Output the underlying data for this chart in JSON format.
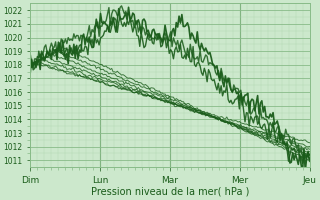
{
  "bg_color": "#cce8cc",
  "grid_color_major": "#88bb88",
  "grid_color_minor": "#aad4aa",
  "line_color": "#1a5c1a",
  "xlabel": "Pression niveau de la mer( hPa )",
  "xtick_labels": [
    "Dim",
    "Lun",
    "Mar",
    "Mer",
    "Jeu"
  ],
  "ylim": [
    1010.5,
    1022.5
  ],
  "yticks": [
    1011,
    1012,
    1013,
    1014,
    1015,
    1016,
    1017,
    1018,
    1019,
    1020,
    1021,
    1022
  ],
  "n_points": 200
}
